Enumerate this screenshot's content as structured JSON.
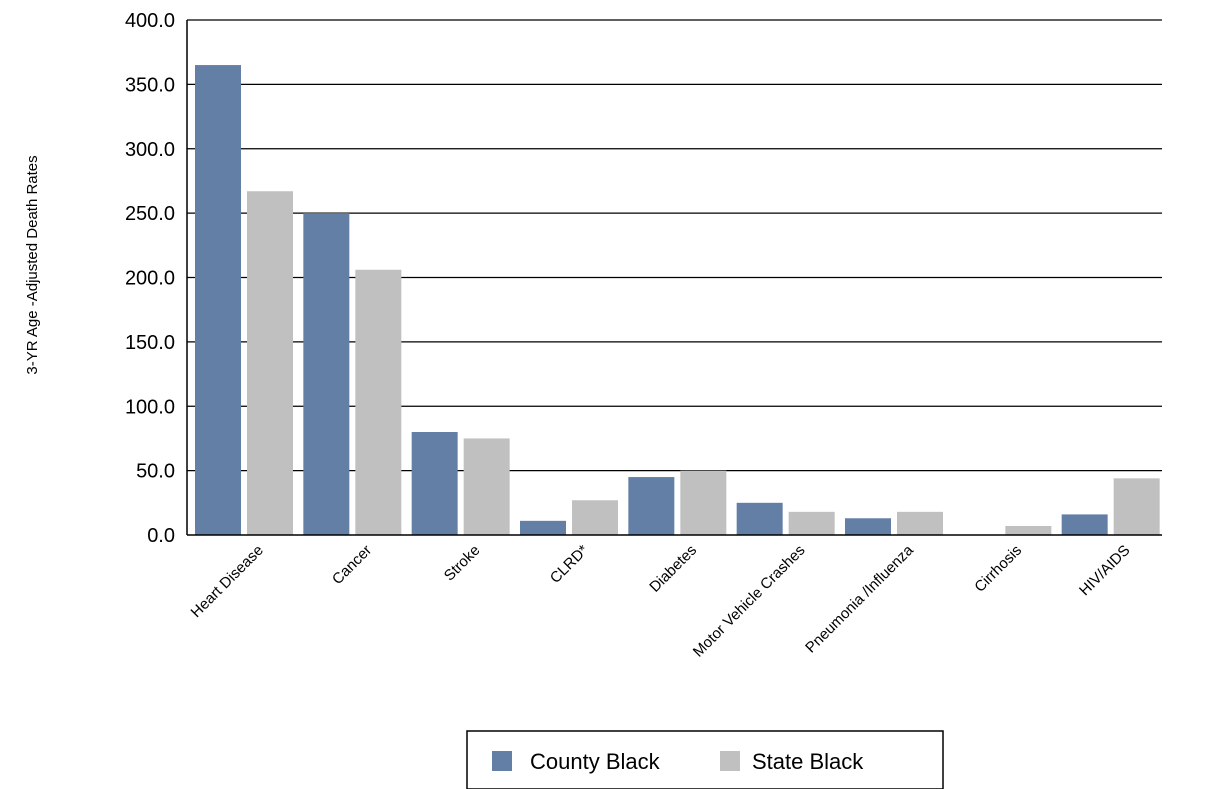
{
  "chart_data": {
    "type": "bar",
    "title": "",
    "xlabel": "",
    "ylabel": "3-YR Age -Adjusted Death Rates",
    "ylim": [
      0,
      400
    ],
    "yticks": [
      "0.0",
      "50.0",
      "100.0",
      "150.0",
      "200.0",
      "250.0",
      "300.0",
      "350.0",
      "400.0"
    ],
    "grid": true,
    "legend_position": "bottom",
    "categories": [
      "Heart Disease",
      "Cancer",
      "Stroke",
      "CLRD*",
      "Diabetes",
      "Motor Vehicle Crashes",
      "Pneumonia /Influenza",
      "Cirrhosis",
      "HIV/AIDS"
    ],
    "series": [
      {
        "name": "County Black",
        "color": "#647fa6",
        "values": [
          365,
          250,
          80,
          11,
          45,
          25,
          13,
          0,
          16
        ]
      },
      {
        "name": "State Black",
        "color": "#c0c0c0",
        "values": [
          267,
          206,
          75,
          27,
          50,
          18,
          18,
          7,
          44
        ]
      }
    ]
  }
}
